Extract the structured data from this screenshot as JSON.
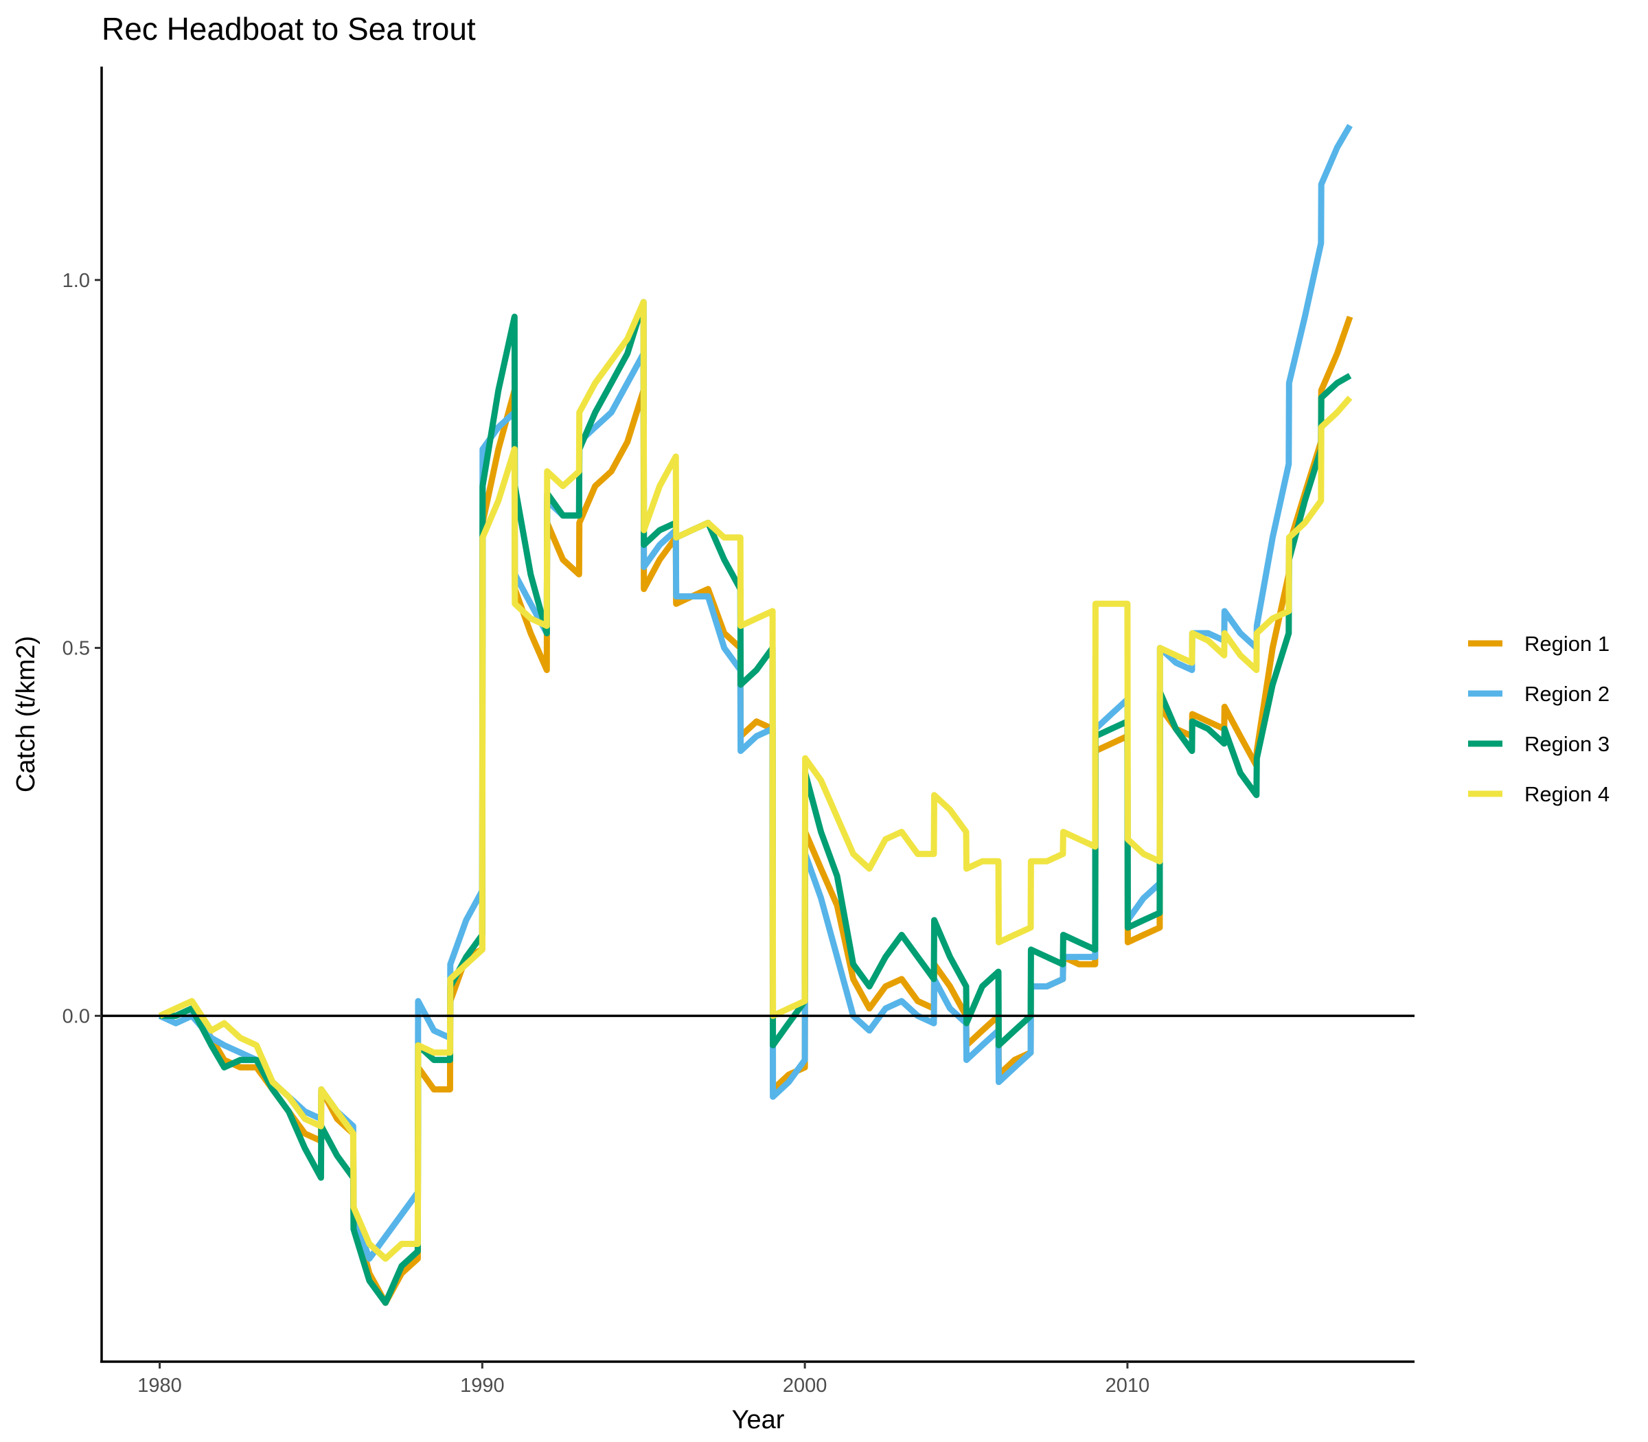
{
  "chart_data": {
    "type": "line",
    "title": "Rec Headboat to Sea trout",
    "xlabel": "Year",
    "ylabel": "Catch (t/km2)",
    "xlim": [
      1978.2,
      2018.9
    ],
    "ylim": [
      -0.47,
      1.29
    ],
    "x_ticks": [
      {
        "value": 1980,
        "label": "1980"
      },
      {
        "value": 1990,
        "label": "1990"
      },
      {
        "value": 2000,
        "label": "2000"
      },
      {
        "value": 2010,
        "label": "2010"
      }
    ],
    "y_ticks": [
      {
        "value": 0.0,
        "label": "0.0"
      },
      {
        "value": 0.5,
        "label": "0.5"
      },
      {
        "value": 1.0,
        "label": "1.0"
      }
    ],
    "reference_line_y": 0.0,
    "grid": false,
    "legend_position": "right",
    "series": [
      {
        "name": "Region 1",
        "color": "#E69F00",
        "x": [
          1980,
          1980.5,
          1981,
          1981.6,
          1982,
          1982.5,
          1983,
          1983.5,
          1984,
          1984.5,
          1985,
          1985.01,
          1985.5,
          1986,
          1986.01,
          1986.5,
          1987,
          1987.5,
          1988,
          1988.01,
          1988.5,
          1989,
          1989.01,
          1989.5,
          1990,
          1990.01,
          1990.5,
          1991,
          1991.01,
          1991.5,
          1992,
          1992.01,
          1992.5,
          1993,
          1993.01,
          1993.5,
          1994,
          1994.5,
          1995,
          1995.01,
          1995.5,
          1996,
          1996.01,
          1996.5,
          1997,
          1997.5,
          1998,
          1998.01,
          1998.5,
          1999,
          1999.01,
          1999.5,
          2000,
          2000.01,
          2000.5,
          2001,
          2001.5,
          2002,
          2002.5,
          2003,
          2003.5,
          2004,
          2004.01,
          2004.5,
          2005,
          2005.01,
          2005.5,
          2006,
          2006.01,
          2006.5,
          2007,
          2007.01,
          2007.5,
          2008,
          2008.01,
          2008.5,
          2009,
          2009.01,
          2009.5,
          2010,
          2010.01,
          2010.5,
          2011,
          2011.01,
          2011.5,
          2012,
          2012.01,
          2012.5,
          2013,
          2013.01,
          2013.5,
          2014,
          2014.01,
          2014.5,
          2015,
          2015.01,
          2015.5,
          2016,
          2016.01,
          2016.5,
          2016.9
        ],
        "y": [
          0.0,
          0.0,
          0.01,
          -0.03,
          -0.06,
          -0.07,
          -0.07,
          -0.1,
          -0.13,
          -0.16,
          -0.17,
          -0.1,
          -0.14,
          -0.16,
          -0.27,
          -0.35,
          -0.39,
          -0.35,
          -0.33,
          -0.07,
          -0.1,
          -0.1,
          0.02,
          0.08,
          0.09,
          0.67,
          0.77,
          0.85,
          0.58,
          0.52,
          0.47,
          0.67,
          0.62,
          0.6,
          0.67,
          0.72,
          0.74,
          0.78,
          0.85,
          0.58,
          0.62,
          0.65,
          0.56,
          0.57,
          0.58,
          0.52,
          0.5,
          0.38,
          0.4,
          0.39,
          -0.1,
          -0.08,
          -0.07,
          0.25,
          0.2,
          0.15,
          0.05,
          0.01,
          0.04,
          0.05,
          0.02,
          0.01,
          0.07,
          0.04,
          0.0,
          -0.04,
          -0.02,
          0.0,
          -0.08,
          -0.06,
          -0.05,
          0.04,
          0.04,
          0.05,
          0.08,
          0.07,
          0.07,
          0.36,
          0.37,
          0.38,
          0.1,
          0.11,
          0.12,
          0.42,
          0.39,
          0.38,
          0.41,
          0.4,
          0.39,
          0.42,
          0.38,
          0.34,
          0.36,
          0.5,
          0.6,
          0.64,
          0.71,
          0.78,
          0.85,
          0.9,
          0.95
        ]
      },
      {
        "name": "Region 2",
        "color": "#56B4E9",
        "x": [
          1980,
          1980.5,
          1981,
          1981.6,
          1982,
          1982.5,
          1983,
          1983.5,
          1984,
          1984.5,
          1985,
          1985.01,
          1985.5,
          1986,
          1986.01,
          1986.5,
          1987,
          1987.5,
          1988,
          1988.01,
          1988.5,
          1989,
          1989.01,
          1989.5,
          1990,
          1990.01,
          1990.5,
          1991,
          1991.01,
          1991.5,
          1992,
          1992.01,
          1992.5,
          1993,
          1993.01,
          1993.5,
          1994,
          1994.5,
          1995,
          1995.01,
          1995.5,
          1996,
          1996.01,
          1996.5,
          1997,
          1997.5,
          1998,
          1998.01,
          1998.5,
          1999,
          1999.01,
          1999.5,
          2000,
          2000.01,
          2000.5,
          2001,
          2001.5,
          2002,
          2002.5,
          2003,
          2003.5,
          2004,
          2004.01,
          2004.5,
          2005,
          2005.01,
          2005.5,
          2006,
          2006.01,
          2006.5,
          2007,
          2007.01,
          2007.5,
          2008,
          2008.01,
          2008.5,
          2009,
          2009.01,
          2009.5,
          2010,
          2010.01,
          2010.5,
          2011,
          2011.01,
          2011.5,
          2012,
          2012.01,
          2012.5,
          2013,
          2013.01,
          2013.5,
          2014,
          2014.01,
          2014.5,
          2015,
          2015.01,
          2015.5,
          2016,
          2016.01,
          2016.5,
          2016.9
        ],
        "y": [
          0.0,
          -0.01,
          0.0,
          -0.03,
          -0.04,
          -0.05,
          -0.06,
          -0.09,
          -0.11,
          -0.13,
          -0.14,
          -0.1,
          -0.13,
          -0.15,
          -0.27,
          -0.33,
          -0.3,
          -0.27,
          -0.24,
          0.02,
          -0.02,
          -0.03,
          0.07,
          0.13,
          0.17,
          0.77,
          0.8,
          0.82,
          0.6,
          0.56,
          0.52,
          0.7,
          0.68,
          0.68,
          0.78,
          0.8,
          0.82,
          0.86,
          0.9,
          0.61,
          0.64,
          0.66,
          0.57,
          0.57,
          0.57,
          0.5,
          0.47,
          0.36,
          0.38,
          0.39,
          -0.11,
          -0.09,
          -0.06,
          0.22,
          0.16,
          0.08,
          0.0,
          -0.02,
          0.01,
          0.02,
          0.0,
          -0.01,
          0.05,
          0.01,
          -0.01,
          -0.06,
          -0.04,
          -0.02,
          -0.09,
          -0.07,
          -0.05,
          0.04,
          0.04,
          0.05,
          0.08,
          0.08,
          0.08,
          0.39,
          0.41,
          0.43,
          0.13,
          0.16,
          0.18,
          0.5,
          0.48,
          0.47,
          0.52,
          0.52,
          0.51,
          0.55,
          0.52,
          0.5,
          0.53,
          0.65,
          0.75,
          0.86,
          0.95,
          1.05,
          1.13,
          1.18,
          1.21
        ]
      },
      {
        "name": "Region 3",
        "color": "#009E73",
        "x": [
          1980,
          1980.5,
          1981,
          1981.6,
          1982,
          1982.5,
          1983,
          1983.5,
          1984,
          1984.5,
          1985,
          1985.01,
          1985.5,
          1986,
          1986.01,
          1986.5,
          1987,
          1987.5,
          1988,
          1988.01,
          1988.5,
          1989,
          1989.01,
          1989.5,
          1990,
          1990.01,
          1990.5,
          1991,
          1991.01,
          1991.5,
          1992,
          1992.01,
          1992.5,
          1993,
          1993.01,
          1993.5,
          1994,
          1994.5,
          1995,
          1995.01,
          1995.5,
          1996,
          1996.01,
          1996.5,
          1997,
          1997.5,
          1998,
          1998.01,
          1998.5,
          1999,
          1999.01,
          1999.5,
          2000,
          2000.01,
          2000.5,
          2001,
          2001.5,
          2002,
          2002.5,
          2003,
          2003.5,
          2004,
          2004.01,
          2004.5,
          2005,
          2005.01,
          2005.5,
          2006,
          2006.01,
          2006.5,
          2007,
          2007.01,
          2007.5,
          2008,
          2008.01,
          2008.5,
          2009,
          2009.01,
          2009.5,
          2010,
          2010.01,
          2010.5,
          2011,
          2011.01,
          2011.5,
          2012,
          2012.01,
          2012.5,
          2013,
          2013.01,
          2013.5,
          2014,
          2014.01,
          2014.5,
          2015,
          2015.01,
          2015.5,
          2016,
          2016.01,
          2016.5,
          2016.9
        ],
        "y": [
          0.0,
          0.0,
          0.01,
          -0.04,
          -0.07,
          -0.06,
          -0.06,
          -0.1,
          -0.13,
          -0.18,
          -0.22,
          -0.15,
          -0.19,
          -0.22,
          -0.29,
          -0.36,
          -0.39,
          -0.34,
          -0.32,
          -0.04,
          -0.06,
          -0.06,
          0.04,
          0.08,
          0.11,
          0.72,
          0.85,
          0.95,
          0.72,
          0.6,
          0.52,
          0.71,
          0.68,
          0.68,
          0.77,
          0.82,
          0.86,
          0.9,
          0.97,
          0.64,
          0.66,
          0.67,
          0.65,
          0.66,
          0.67,
          0.62,
          0.58,
          0.45,
          0.47,
          0.5,
          -0.04,
          -0.01,
          0.02,
          0.33,
          0.25,
          0.19,
          0.07,
          0.04,
          0.08,
          0.11,
          0.08,
          0.05,
          0.13,
          0.08,
          0.04,
          -0.01,
          0.04,
          0.06,
          -0.04,
          -0.02,
          0.0,
          0.09,
          0.08,
          0.07,
          0.11,
          0.1,
          0.09,
          0.38,
          0.39,
          0.4,
          0.12,
          0.13,
          0.14,
          0.44,
          0.39,
          0.36,
          0.4,
          0.39,
          0.37,
          0.39,
          0.33,
          0.3,
          0.35,
          0.45,
          0.52,
          0.62,
          0.7,
          0.77,
          0.84,
          0.86,
          0.87
        ]
      },
      {
        "name": "Region 4",
        "color": "#F0E442",
        "x": [
          1980,
          1980.5,
          1981,
          1981.6,
          1982,
          1982.5,
          1983,
          1983.5,
          1984,
          1984.5,
          1985,
          1985.01,
          1985.5,
          1986,
          1986.01,
          1986.5,
          1987,
          1987.5,
          1988,
          1988.01,
          1988.5,
          1989,
          1989.01,
          1989.5,
          1990,
          1990.01,
          1990.5,
          1991,
          1991.01,
          1991.5,
          1992,
          1992.01,
          1992.5,
          1993,
          1993.01,
          1993.5,
          1994,
          1994.5,
          1995,
          1995.01,
          1995.5,
          1996,
          1996.01,
          1996.5,
          1997,
          1997.5,
          1998,
          1998.01,
          1998.5,
          1999,
          1999.01,
          1999.5,
          2000,
          2000.01,
          2000.5,
          2001,
          2001.5,
          2002,
          2002.5,
          2003,
          2003.5,
          2004,
          2004.01,
          2004.5,
          2005,
          2005.01,
          2005.5,
          2006,
          2006.01,
          2006.5,
          2007,
          2007.01,
          2007.5,
          2008,
          2008.01,
          2008.5,
          2009,
          2009.01,
          2009.5,
          2010,
          2010.01,
          2010.5,
          2011,
          2011.01,
          2011.5,
          2012,
          2012.01,
          2012.5,
          2013,
          2013.01,
          2013.5,
          2014,
          2014.01,
          2014.5,
          2015,
          2015.01,
          2015.5,
          2016,
          2016.01,
          2016.5,
          2016.9
        ],
        "y": [
          0.0,
          0.01,
          0.02,
          -0.02,
          -0.01,
          -0.03,
          -0.04,
          -0.09,
          -0.11,
          -0.14,
          -0.15,
          -0.1,
          -0.13,
          -0.16,
          -0.26,
          -0.31,
          -0.33,
          -0.31,
          -0.31,
          -0.04,
          -0.05,
          -0.05,
          0.05,
          0.07,
          0.09,
          0.65,
          0.7,
          0.77,
          0.56,
          0.54,
          0.53,
          0.74,
          0.72,
          0.74,
          0.82,
          0.86,
          0.89,
          0.92,
          0.97,
          0.66,
          0.72,
          0.76,
          0.65,
          0.66,
          0.67,
          0.65,
          0.65,
          0.53,
          0.54,
          0.55,
          0.0,
          0.01,
          0.02,
          0.35,
          0.32,
          0.27,
          0.22,
          0.2,
          0.24,
          0.25,
          0.22,
          0.22,
          0.3,
          0.28,
          0.25,
          0.2,
          0.21,
          0.21,
          0.1,
          0.11,
          0.12,
          0.21,
          0.21,
          0.22,
          0.25,
          0.24,
          0.23,
          0.56,
          0.56,
          0.56,
          0.24,
          0.22,
          0.21,
          0.5,
          0.49,
          0.48,
          0.52,
          0.51,
          0.49,
          0.52,
          0.49,
          0.47,
          0.52,
          0.54,
          0.55,
          0.65,
          0.67,
          0.7,
          0.8,
          0.82,
          0.84
        ]
      }
    ]
  }
}
